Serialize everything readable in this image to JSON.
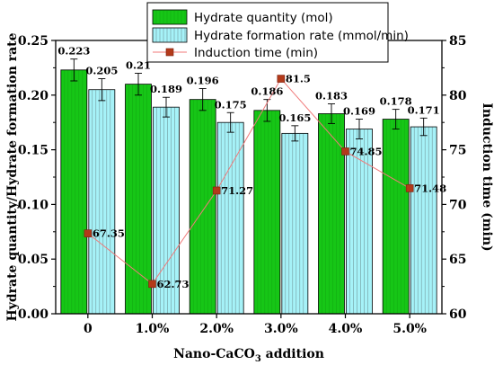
{
  "chart_data": {
    "type": "bar",
    "categories": [
      "0",
      "1.0%",
      "2.0%",
      "3.0%",
      "4.0%",
      "5.0%"
    ],
    "series": [
      {
        "name": "Hydrate quantity (mol)",
        "kind": "bar",
        "axis": "left",
        "color": "#16c616",
        "values": [
          0.223,
          0.21,
          0.196,
          0.186,
          0.183,
          0.178
        ],
        "labels": [
          "0.223",
          "0.21",
          "0.196",
          "0.186",
          "0.183",
          "0.178"
        ],
        "errors": [
          0.01,
          0.01,
          0.01,
          0.01,
          0.009,
          0.009
        ]
      },
      {
        "name": "Hydrate formation rate (mmol/min)",
        "kind": "bar",
        "axis": "left",
        "color": "#a6f2f8",
        "values": [
          0.205,
          0.189,
          0.175,
          0.165,
          0.169,
          0.171
        ],
        "labels": [
          "0.205",
          "0.189",
          "0.175",
          "0.165",
          "0.169",
          "0.171"
        ],
        "errors": [
          0.01,
          0.009,
          0.009,
          0.007,
          0.009,
          0.008
        ]
      },
      {
        "name": "Induction time (min)",
        "kind": "line",
        "axis": "right",
        "color": "#b33a1a",
        "line_color": "#f07a7a",
        "values": [
          67.35,
          62.73,
          71.27,
          81.5,
          74.85,
          71.48
        ],
        "labels": [
          "67.35",
          "62.73",
          "71.27",
          "81.5",
          "74.85",
          "71.48"
        ]
      }
    ],
    "xlabel": "Nano-CaCO",
    "xlabel_subscript": "3",
    "xlabel_suffix": " addition",
    "ylabel": "Hydrate quantity/Hydrate formation rate",
    "y2label": "Induction time (min)",
    "ylim": [
      0.0,
      0.25
    ],
    "y2lim": [
      60,
      85
    ],
    "yticks": [
      "0.00",
      "0.05",
      "0.10",
      "0.15",
      "0.20",
      "0.25"
    ],
    "y2ticks": [
      "60",
      "65",
      "70",
      "75",
      "80",
      "85"
    ],
    "legend_position": "top-center",
    "grid": false
  }
}
